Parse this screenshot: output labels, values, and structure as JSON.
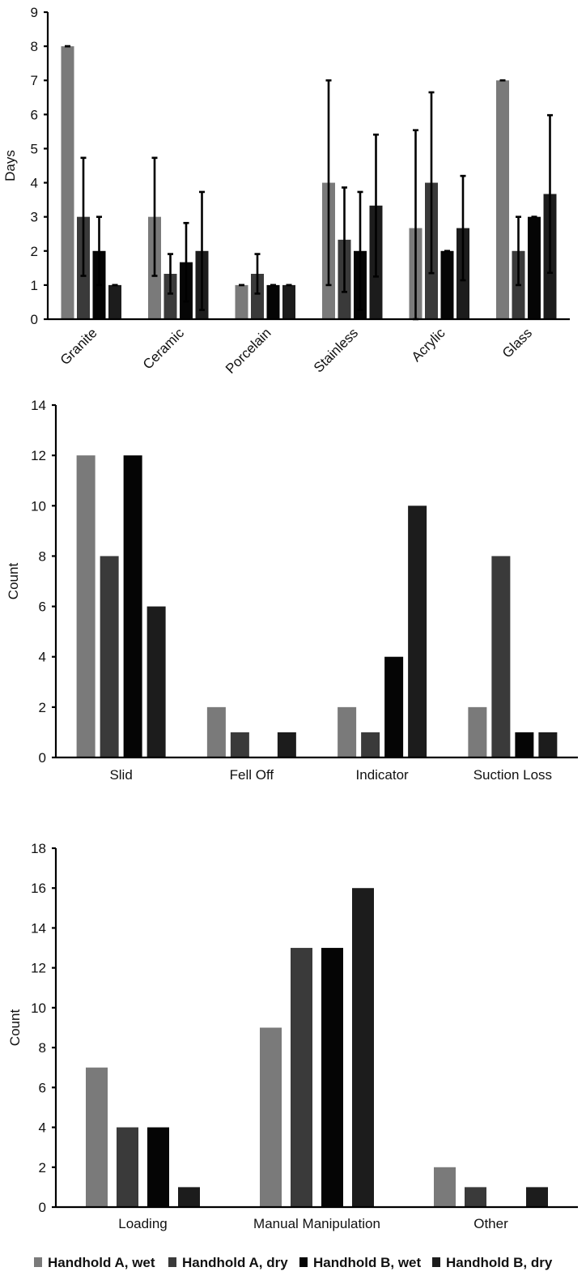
{
  "colors": {
    "series": [
      "#7a7a7a",
      "#3a3a3a",
      "#050505",
      "#1c1c1c"
    ]
  },
  "legend": {
    "items": [
      "Handhold A, wet",
      "Handhold A, dry",
      "Handhold B, wet",
      "Handhold B, dry"
    ]
  },
  "chart_data": [
    {
      "type": "bar",
      "title": "",
      "xlabel": "",
      "ylabel": "Days",
      "ylim": [
        0,
        9
      ],
      "yticks": [
        0,
        1,
        2,
        3,
        4,
        5,
        6,
        7,
        8,
        9
      ],
      "rotated_labels": true,
      "categories": [
        "Granite",
        "Ceramic",
        "Porcelain",
        "Stainless",
        "Acrylic",
        "Glass"
      ],
      "series": [
        {
          "name": "Handhold A, wet",
          "values": [
            8,
            3,
            1,
            4,
            2.67,
            7
          ],
          "err_low": [
            0,
            1.73,
            0,
            3,
            2.67,
            0
          ],
          "err_high": [
            0,
            1.73,
            0,
            3,
            2.87,
            0
          ]
        },
        {
          "name": "Handhold A, dry",
          "values": [
            3,
            1.33,
            1.33,
            2.33,
            4,
            2
          ],
          "err_low": [
            1.73,
            0.58,
            0.58,
            1.53,
            2.65,
            1
          ],
          "err_high": [
            1.73,
            0.58,
            0.58,
            1.53,
            2.65,
            1
          ]
        },
        {
          "name": "Handhold B, wet",
          "values": [
            2,
            1.67,
            1,
            2,
            2,
            3
          ],
          "err_low": [
            1,
            1.15,
            0,
            1.73,
            0,
            0
          ],
          "err_high": [
            1,
            1.15,
            0,
            1.73,
            0,
            0
          ]
        },
        {
          "name": "Handhold B, dry",
          "values": [
            1,
            2,
            1,
            3.33,
            2.67,
            3.67
          ],
          "err_low": [
            0,
            1.73,
            0,
            2.08,
            1.53,
            2.31
          ],
          "err_high": [
            0,
            1.73,
            0,
            2.08,
            1.53,
            2.31
          ]
        }
      ]
    },
    {
      "type": "bar",
      "title": "",
      "xlabel": "",
      "ylabel": "Count",
      "ylim": [
        0,
        14
      ],
      "yticks": [
        0,
        2,
        4,
        6,
        8,
        10,
        12,
        14
      ],
      "rotated_labels": false,
      "categories": [
        "Slid",
        "Fell Off",
        "Indicator",
        "Suction Loss"
      ],
      "series": [
        {
          "name": "Handhold A, wet",
          "values": [
            12,
            2,
            2,
            2
          ]
        },
        {
          "name": "Handhold A, dry",
          "values": [
            8,
            1,
            1,
            8
          ]
        },
        {
          "name": "Handhold B, wet",
          "values": [
            12,
            0,
            4,
            1
          ]
        },
        {
          "name": "Handhold B, dry",
          "values": [
            6,
            1,
            10,
            1
          ]
        }
      ]
    },
    {
      "type": "bar",
      "title": "",
      "xlabel": "",
      "ylabel": "Count",
      "ylim": [
        0,
        18
      ],
      "yticks": [
        0,
        2,
        4,
        6,
        8,
        10,
        12,
        14,
        16,
        18
      ],
      "rotated_labels": false,
      "categories": [
        "Loading",
        "Manual Manipulation",
        "Other"
      ],
      "series": [
        {
          "name": "Handhold A, wet",
          "values": [
            7,
            9,
            2
          ]
        },
        {
          "name": "Handhold A, dry",
          "values": [
            4,
            13,
            1
          ]
        },
        {
          "name": "Handhold B, wet",
          "values": [
            4,
            13,
            0
          ]
        },
        {
          "name": "Handhold B, dry",
          "values": [
            1,
            16,
            1
          ]
        }
      ]
    }
  ]
}
